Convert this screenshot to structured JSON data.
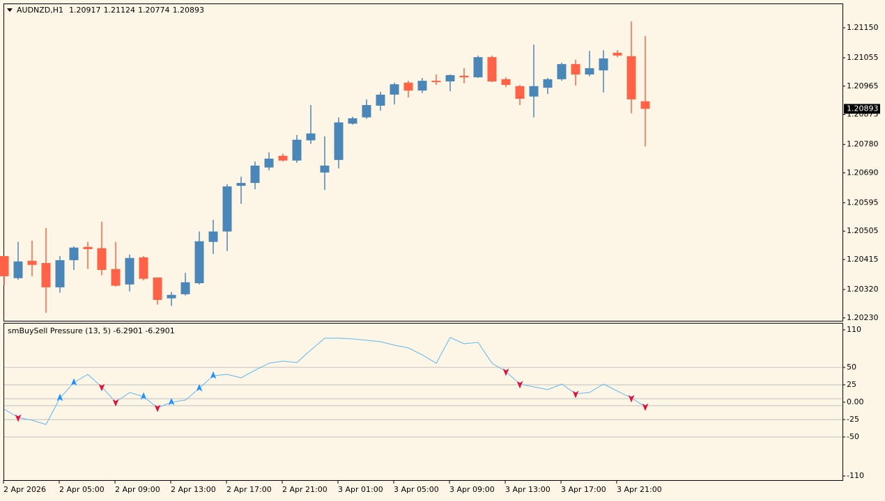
{
  "chart_data": [
    {
      "type": "candlestick",
      "symbol": "AUDNZD,H1",
      "categories": [
        "2 Apr 2026",
        null,
        null,
        null,
        "2 Apr 05:00",
        null,
        null,
        null,
        "2 Apr 09:00",
        null,
        null,
        null,
        "2 Apr 13:00",
        null,
        null,
        null,
        "2 Apr 17:00",
        null,
        null,
        null,
        "2 Apr 21:00",
        null,
        null,
        null,
        "3 Apr 01:00",
        null,
        null,
        null,
        "3 Apr 05:00",
        null,
        null,
        null,
        "3 Apr 09:00",
        null,
        null,
        null,
        "3 Apr 13:00",
        null,
        null,
        null,
        "3 Apr 17:00",
        null,
        null,
        null,
        "3 Apr 21:00",
        null,
        null
      ],
      "open": [
        1.20426,
        1.20356,
        1.20411,
        1.20404,
        1.20327,
        1.20413,
        1.20455,
        1.20451,
        1.20385,
        1.20336,
        1.20422,
        1.20358,
        1.20292,
        1.20305,
        1.2034,
        1.20471,
        1.20504,
        1.20649,
        1.20658,
        1.20707,
        1.20744,
        1.20729,
        1.20793,
        1.20691,
        1.20731,
        1.20846,
        1.20866,
        1.20903,
        1.20938,
        1.20976,
        1.20951,
        1.20982,
        1.2098,
        1.20998,
        1.20993,
        1.21057,
        1.20987,
        1.20965,
        1.20932,
        1.2096,
        1.20987,
        1.21035,
        1.21002,
        1.21015,
        1.21071,
        1.2106,
        1.20917
      ],
      "high": [
        1.20426,
        1.20471,
        1.20475,
        1.20515,
        1.20426,
        1.20457,
        1.20471,
        1.20535,
        1.20471,
        1.20431,
        1.20426,
        1.20358,
        1.20312,
        1.20373,
        1.20504,
        1.20541,
        1.20654,
        1.20678,
        1.20726,
        1.20755,
        1.20751,
        1.2081,
        1.20905,
        1.20806,
        1.20866,
        1.20868,
        1.20923,
        1.20947,
        1.20976,
        1.20982,
        1.20991,
        1.21002,
        1.21002,
        1.21022,
        1.21062,
        1.21062,
        1.20993,
        1.20969,
        1.21097,
        1.20991,
        1.2104,
        1.21049,
        1.21077,
        1.21079,
        1.21079,
        1.2117,
        1.21124
      ],
      "low": [
        1.20334,
        1.20351,
        1.20362,
        1.20246,
        1.2031,
        1.20382,
        1.20385,
        1.20365,
        1.20329,
        1.20314,
        1.20349,
        1.20272,
        1.20268,
        1.20301,
        1.20336,
        1.20433,
        1.20442,
        1.20592,
        1.20638,
        1.20698,
        1.20726,
        1.20722,
        1.20782,
        1.20636,
        1.20704,
        1.20843,
        1.20861,
        1.20887,
        1.20907,
        1.20929,
        1.20943,
        1.20969,
        1.20949,
        1.20974,
        1.20991,
        1.20978,
        1.20962,
        1.20905,
        1.20866,
        1.2094,
        1.20982,
        1.20967,
        1.20996,
        1.20945,
        1.21057,
        1.20879,
        1.20774
      ],
      "close": [
        1.20362,
        1.20409,
        1.20398,
        1.20327,
        1.20413,
        1.20453,
        1.20448,
        1.20382,
        1.20332,
        1.2042,
        1.20354,
        1.20287,
        1.20303,
        1.20343,
        1.20473,
        1.20504,
        1.20647,
        1.20658,
        1.20713,
        1.20735,
        1.20729,
        1.20795,
        1.20815,
        1.20713,
        1.2085,
        1.20863,
        1.20905,
        1.20938,
        1.20971,
        1.20951,
        1.20982,
        1.20978,
        1.21,
        1.20993,
        1.21057,
        1.2098,
        1.20969,
        1.20925,
        1.20965,
        1.20987,
        1.21035,
        1.21002,
        1.21022,
        1.21053,
        1.21062,
        1.20923,
        1.20893
      ],
      "up_color": "#4a86b8",
      "down_color": "#ff6347",
      "ylim": [
        1.20223,
        1.21225
      ],
      "yticks": [
        {
          "value": 1.2115,
          "label": "1.21150"
        },
        {
          "value": 1.21055,
          "label": "1.21055"
        },
        {
          "value": 1.20965,
          "label": "1.20965"
        },
        {
          "value": 1.20875,
          "label": "1.20875"
        },
        {
          "value": 1.2078,
          "label": "1.20780"
        },
        {
          "value": 1.2069,
          "label": "1.20690"
        },
        {
          "value": 1.20595,
          "label": "1.20595"
        },
        {
          "value": 1.20505,
          "label": "1.20505"
        },
        {
          "value": 1.20415,
          "label": "1.20415"
        },
        {
          "value": 1.2032,
          "label": "1.20320"
        },
        {
          "value": 1.2023,
          "label": "1.20230"
        }
      ]
    },
    {
      "type": "line",
      "title": "smBuySell Pressure (13, 5) -6.2901 -6.2901",
      "values": [
        -10,
        -22,
        -26,
        -32,
        6,
        28,
        40,
        22,
        0,
        14,
        8,
        -8,
        0,
        3,
        20,
        38,
        40,
        35,
        46,
        56,
        59,
        57,
        75,
        92,
        92,
        91,
        89,
        87,
        82,
        78,
        68,
        56,
        93,
        84,
        86,
        56,
        44,
        26,
        22,
        18,
        26,
        12,
        14,
        26,
        16,
        6,
        -6.2901
      ],
      "color": "#5bb8f0",
      "buy_arrows": [
        null,
        null,
        null,
        null,
        6,
        28,
        null,
        null,
        null,
        null,
        8,
        null,
        0,
        null,
        20,
        38,
        null,
        null,
        null,
        null,
        null,
        null,
        null,
        null,
        null,
        null,
        null,
        null,
        null,
        null,
        null,
        null,
        null,
        null,
        null,
        null,
        null,
        null,
        null,
        null,
        null,
        null,
        null,
        null,
        null,
        null,
        null
      ],
      "sell_arrows": [
        null,
        -22,
        null,
        null,
        null,
        null,
        null,
        22,
        0,
        null,
        null,
        -8,
        null,
        null,
        null,
        null,
        null,
        null,
        null,
        null,
        null,
        null,
        null,
        null,
        null,
        null,
        null,
        null,
        null,
        null,
        null,
        null,
        null,
        null,
        null,
        null,
        44,
        26,
        null,
        null,
        null,
        12,
        null,
        null,
        null,
        6,
        -6.2901
      ],
      "buy_color": "#1e90ff",
      "sell_color": "#dc143c",
      "ylim": [
        -110,
        110
      ],
      "yticks": [
        110,
        50,
        25,
        {
          "value": 0,
          "label": "0.00"
        },
        -25,
        -50,
        -110
      ],
      "levels": [
        50,
        25,
        5,
        -5,
        -25,
        -50
      ]
    }
  ]
}
